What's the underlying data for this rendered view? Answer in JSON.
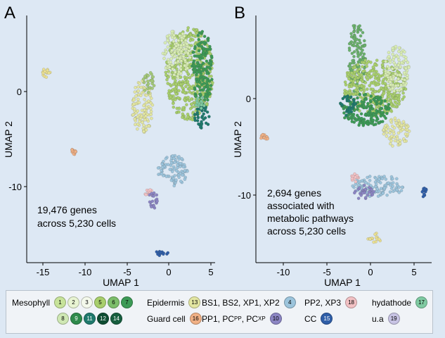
{
  "panels": [
    {
      "letter": "A",
      "xlabel": "UMAP 1",
      "ylabel": "UMAP 2",
      "xticks": [
        "-15",
        "-10",
        "-5",
        "0",
        "5"
      ],
      "yticks": [
        "0",
        "-10"
      ],
      "annotation": [
        "19,476 genes",
        "across 5,230 cells"
      ]
    },
    {
      "letter": "B",
      "xlabel": "UMAP 1",
      "ylabel": "UMAP 2",
      "xticks": [
        "-10",
        "-5",
        "0",
        "5"
      ],
      "yticks": [
        "0",
        "-10"
      ],
      "annotation": [
        "2,694 genes",
        "associated with",
        "metabolic pathways",
        "across 5,230 cells"
      ]
    }
  ],
  "chart_data": [
    {
      "type": "scatter",
      "title": "A",
      "xlabel": "UMAP 1",
      "ylabel": "UMAP 2",
      "xlim": [
        -16.5,
        5.5
      ],
      "ylim": [
        -17,
        8.5
      ],
      "annotation": "19,476 genes across 5,230 cells",
      "clusters": [
        {
          "name": "Mesophyll",
          "color": "#a8cf6c",
          "x": 2.5,
          "y": 2.5,
          "rx": 2.8,
          "ry": 4.8
        },
        {
          "name": "Mesophyll",
          "color": "#3c9a56",
          "x": 4.0,
          "y": 3.0,
          "rx": 1.2,
          "ry": 4.0
        },
        {
          "name": "Mesophyll",
          "color": "#d8ecb4",
          "x": 1.0,
          "y": 4.5,
          "rx": 1.6,
          "ry": 2.5
        },
        {
          "name": "Mesophyll",
          "color": "#1f7a6d",
          "x": 4.0,
          "y": -2.0,
          "rx": 0.9,
          "ry": 1.2
        },
        {
          "name": "Epidermis",
          "color": "#e3e6a2",
          "x": -3.0,
          "y": -1.0,
          "rx": 1.2,
          "ry": 2.8
        },
        {
          "name": "Epidermis",
          "color": "#a4c97a",
          "x": -2.3,
          "y": 1.5,
          "rx": 0.7,
          "ry": 1.2
        },
        {
          "name": "hydathode",
          "color": "#7fcaa2",
          "x": 3.8,
          "y": -0.5,
          "rx": 0.6,
          "ry": 0.6
        },
        {
          "name": "Guard cell",
          "color": "#f0b085",
          "x": -11.0,
          "y": -5.5,
          "rx": 0.3,
          "ry": 0.4
        },
        {
          "name": "u.a",
          "color": "#eae092",
          "x": -14.2,
          "y": 2.5,
          "rx": 0.7,
          "ry": 0.5
        },
        {
          "name": "BS1, BS2, XP1, XP2",
          "color": "#9cc4dc",
          "x": 0.5,
          "y": -7.5,
          "rx": 1.8,
          "ry": 1.6
        },
        {
          "name": "PP2, XP3",
          "color": "#f2c1c4",
          "x": -2.2,
          "y": -9.8,
          "rx": 0.5,
          "ry": 0.4
        },
        {
          "name": "PP1, PCPP, PCXP",
          "color": "#8b85c3",
          "x": -1.7,
          "y": -10.6,
          "rx": 0.8,
          "ry": 0.8
        },
        {
          "name": "CC",
          "color": "#2f5ea8",
          "x": -0.7,
          "y": -16.0,
          "rx": 0.7,
          "ry": 0.3
        }
      ]
    },
    {
      "type": "scatter",
      "title": "B",
      "xlabel": "UMAP 1",
      "ylabel": "UMAP 2",
      "xlim": [
        -13.5,
        6.5
      ],
      "ylim": [
        -17,
        10.5
      ],
      "annotation": "2,694 genes associated with metabolic pathways across 5,230 cells",
      "clusters": [
        {
          "name": "Mesophyll",
          "color": "#6ab06c",
          "x": -2.0,
          "y": 5.5,
          "rx": 1.0,
          "ry": 4.2
        },
        {
          "name": "Mesophyll",
          "color": "#a8cf6c",
          "x": 0.0,
          "y": 2.5,
          "rx": 3.6,
          "ry": 3.2
        },
        {
          "name": "Mesophyll",
          "color": "#d8ecb4",
          "x": 2.5,
          "y": 4.5,
          "rx": 1.4,
          "ry": 2.6
        },
        {
          "name": "Mesophyll",
          "color": "#3c9a56",
          "x": -1.0,
          "y": 0.0,
          "rx": 2.8,
          "ry": 1.8
        },
        {
          "name": "Mesophyll",
          "color": "#1f7a6d",
          "x": -3.0,
          "y": 0.5,
          "rx": 0.9,
          "ry": 1.2
        },
        {
          "name": "Epidermis",
          "color": "#e3e6a2",
          "x": 2.5,
          "y": -2.5,
          "rx": 1.5,
          "ry": 1.6
        },
        {
          "name": "Guard cell",
          "color": "#f0b085",
          "x": -12.5,
          "y": -3.0,
          "rx": 0.6,
          "ry": 0.3
        },
        {
          "name": "u.a",
          "color": "#eae092",
          "x": 0.0,
          "y": -14.2,
          "rx": 0.8,
          "ry": 0.6
        },
        {
          "name": "BS1, BS2, XP1, XP2",
          "color": "#9cc4dc",
          "x": 0.5,
          "y": -8.5,
          "rx": 3.0,
          "ry": 1.2
        },
        {
          "name": "PP2, XP3",
          "color": "#f2c1c4",
          "x": -2.2,
          "y": -7.5,
          "rx": 0.5,
          "ry": 0.5
        },
        {
          "name": "PP1, PCPP, PCXP",
          "color": "#8b85c3",
          "x": -1.2,
          "y": -9.2,
          "rx": 1.2,
          "ry": 0.8
        },
        {
          "name": "CC",
          "color": "#2f5ea8",
          "x": 5.7,
          "y": -9.2,
          "rx": 0.3,
          "ry": 0.6
        }
      ]
    }
  ],
  "legend": {
    "mesophyll_label": "Mesophyll",
    "mesophyll_numbers": [
      "1",
      "2",
      "3",
      "5",
      "6",
      "7",
      "8",
      "9",
      "11",
      "12",
      "14"
    ],
    "mesophyll_colors": [
      "#c7e39a",
      "#e8f4d2",
      "#f4f9ec",
      "#a8cf6c",
      "#7cbe6b",
      "#3c9a56",
      "#cfe8b4",
      "#2e8a4c",
      "#1f7a6d",
      "#0e4d33",
      "#165e3f"
    ],
    "epidermis_label": "Epidermis",
    "epidermis_number": "13",
    "epidermis_color": "#e3e6a2",
    "guard_label": "Guard cell",
    "guard_number": "16",
    "guard_color": "#f0b085",
    "bs_label": "BS1, BS2, XP1, XP2",
    "bs_number": "4",
    "bs_color": "#9cc4dc",
    "pp1_label": "PP1, PC",
    "pp1_sup1": "PP",
    "pp1_mid": ", PC",
    "pp1_sup2": "XP",
    "pp1_number": "10",
    "pp1_color": "#8b85c3",
    "pp2_label": "PP2, XP3",
    "pp2_number": "18",
    "pp2_color": "#f2c1c4",
    "cc_label": "CC",
    "cc_number": "15",
    "cc_color": "#2f5ea8",
    "hydathode_label": "hydathode",
    "hydathode_number": "17",
    "hydathode_color": "#7fcaa2",
    "ua_label": "u.a",
    "ua_number": "19",
    "ua_color": "#c7c3e4"
  }
}
